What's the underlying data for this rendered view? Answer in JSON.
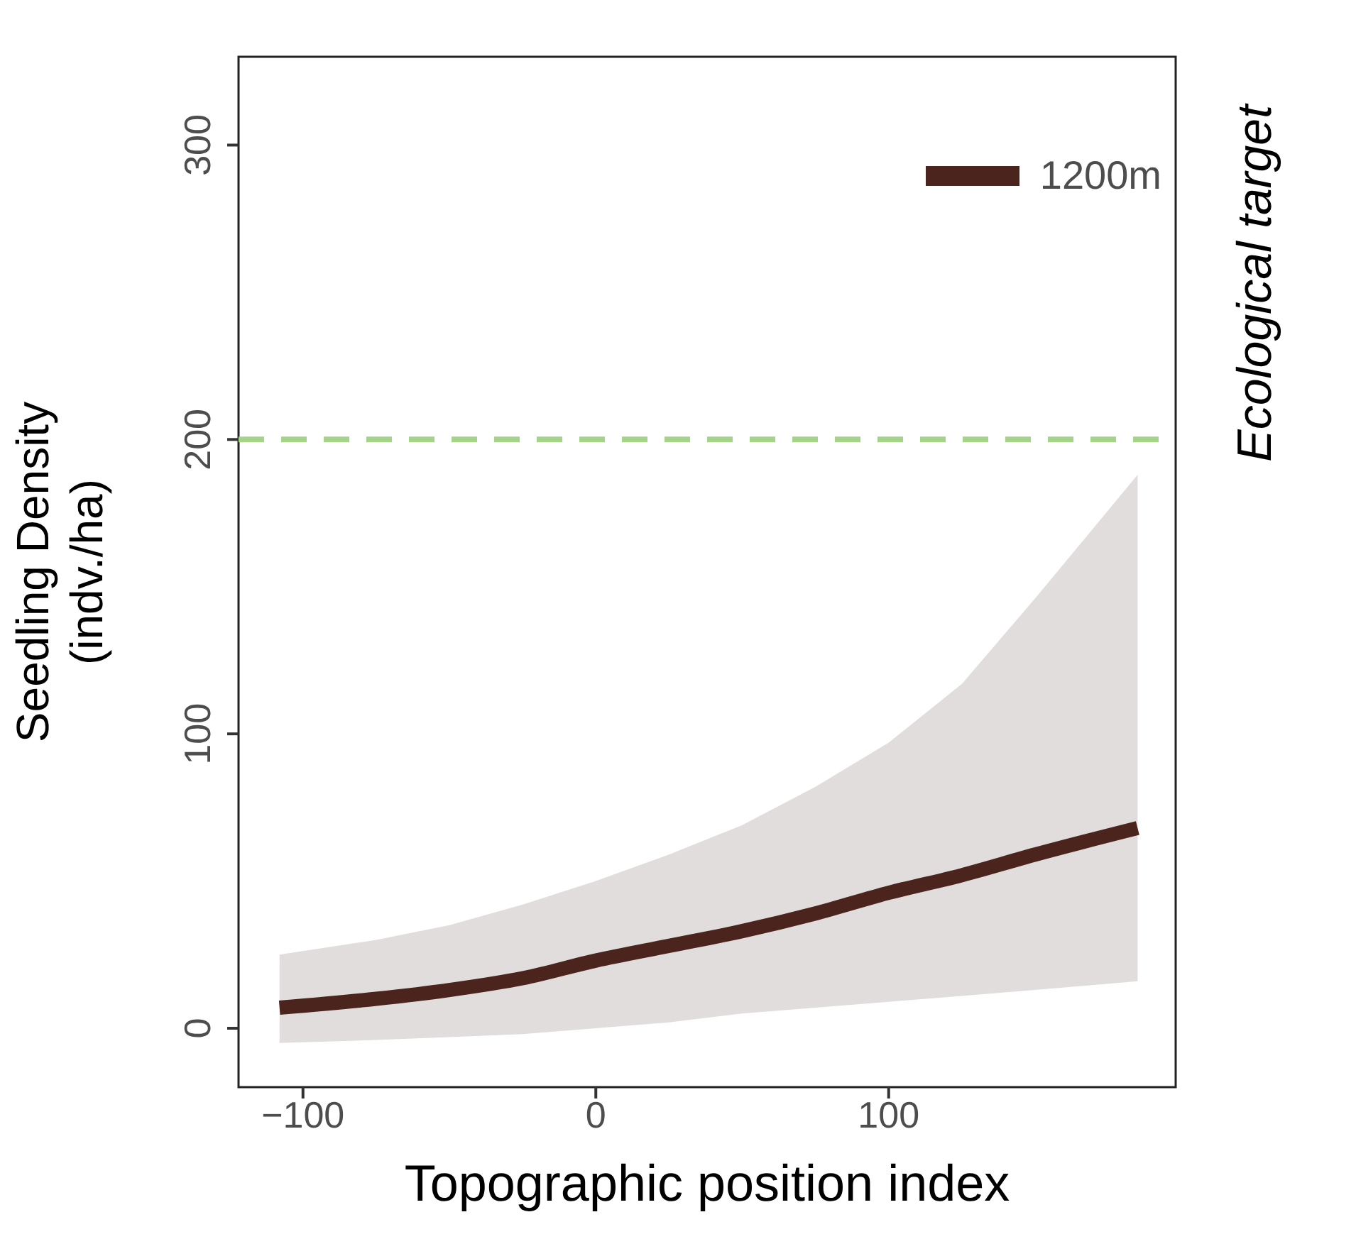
{
  "chart_data": {
    "type": "line",
    "xlabel": "Topographic position index",
    "ylabel": "Seedling Density\n(indv./ha)",
    "x": [
      -108,
      -75,
      -50,
      -25,
      0,
      25,
      50,
      75,
      100,
      125,
      150,
      185
    ],
    "series": [
      {
        "name": "1200m",
        "color": "#4a241d",
        "values": [
          7,
          10,
          13,
          17,
          23,
          28,
          33,
          39,
          46,
          52,
          59,
          68
        ],
        "lower": [
          -5,
          -4,
          -3,
          -2,
          0,
          2,
          5,
          7,
          9,
          11,
          13,
          16
        ],
        "upper": [
          25,
          30,
          35,
          42,
          50,
          59,
          69,
          82,
          97,
          117,
          146,
          188
        ]
      }
    ],
    "xlim": [
      -122,
      198
    ],
    "xticks": [
      {
        "value": -100,
        "label": "−100"
      },
      0,
      100
    ],
    "ylim": [
      -20,
      330
    ],
    "yticks": [
      0,
      100,
      200,
      300
    ],
    "ref_lines": [
      {
        "axis": "y",
        "value": 200,
        "label": "Ecological target",
        "color": "#a5d38a",
        "line_style": "dashed"
      }
    ],
    "legend": "top right",
    "grid": false
  }
}
